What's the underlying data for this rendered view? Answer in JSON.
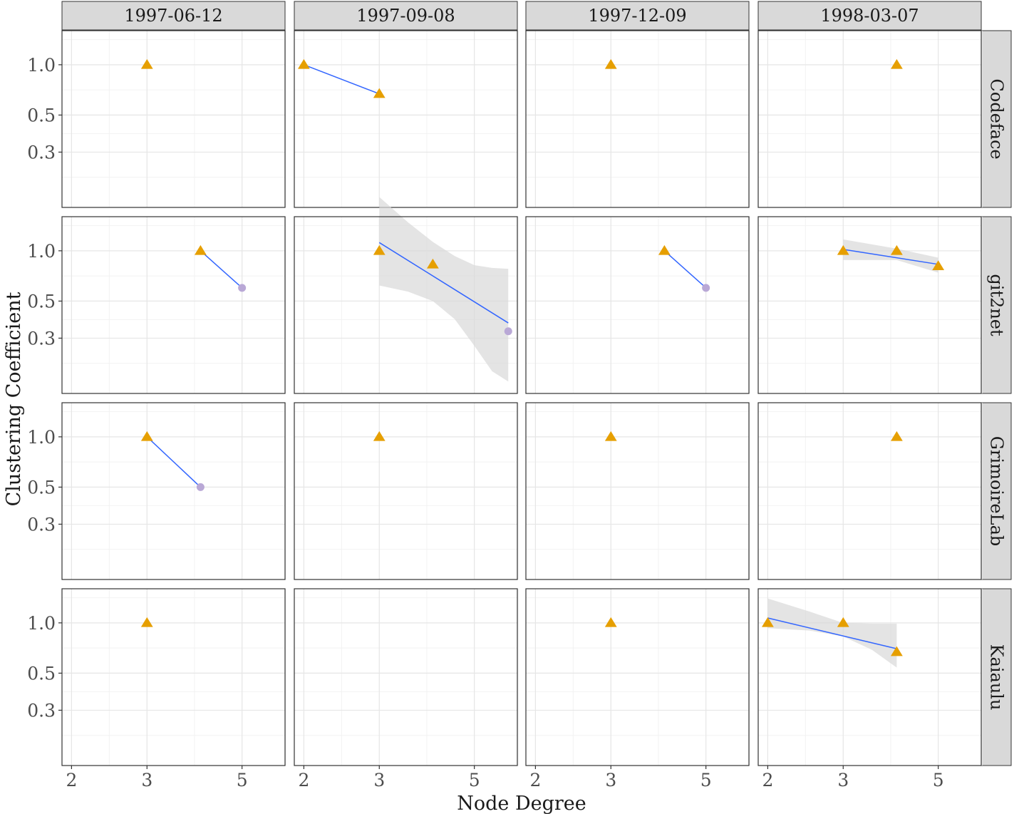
{
  "chart_data": {
    "type": "scatter",
    "title": "",
    "xlabel": "Node Degree",
    "ylabel": "Clustering Coefficient",
    "x_scale": "log",
    "y_scale": "log",
    "xlim": [
      1.9,
      6.3
    ],
    "ylim": [
      0.14,
      1.6
    ],
    "x_ticks": [
      2,
      3,
      5
    ],
    "x_tick_labels": [
      "2",
      "3",
      "5"
    ],
    "y_ticks": [
      0.3,
      0.5,
      1.0
    ],
    "y_tick_labels": [
      "0.3",
      "0.5",
      "1.0"
    ],
    "grid": true,
    "columns": [
      "1997-06-12",
      "1997-09-08",
      "1997-12-09",
      "1998-03-07"
    ],
    "rows": [
      "Codeface",
      "git2net",
      "GrimoireLab",
      "Kaiaulu"
    ],
    "colors": {
      "triangle": "#E69F00",
      "circle": "#B9A8D6",
      "fit_line": "#3366FF",
      "ribbon": "#D9D9D9",
      "strip": "#D9D9D9"
    },
    "panels": [
      {
        "row": "Codeface",
        "col": "1997-06-12",
        "points": [
          {
            "x": 3,
            "y": 1.0,
            "shape": "triangle"
          }
        ]
      },
      {
        "row": "Codeface",
        "col": "1997-09-08",
        "points": [
          {
            "x": 2,
            "y": 1.0,
            "shape": "triangle"
          },
          {
            "x": 3,
            "y": 0.67,
            "shape": "triangle"
          }
        ],
        "fit": [
          {
            "x": 2,
            "y": 1.0
          },
          {
            "x": 3,
            "y": 0.67
          }
        ]
      },
      {
        "row": "Codeface",
        "col": "1997-12-09",
        "points": [
          {
            "x": 3,
            "y": 1.0,
            "shape": "triangle"
          }
        ]
      },
      {
        "row": "Codeface",
        "col": "1998-03-07",
        "points": [
          {
            "x": 4,
            "y": 1.0,
            "shape": "triangle"
          }
        ]
      },
      {
        "row": "git2net",
        "col": "1997-06-12",
        "points": [
          {
            "x": 4,
            "y": 1.0,
            "shape": "triangle"
          },
          {
            "x": 5,
            "y": 0.6,
            "shape": "circle"
          }
        ],
        "fit": [
          {
            "x": 4,
            "y": 1.0
          },
          {
            "x": 5,
            "y": 0.6
          }
        ]
      },
      {
        "row": "git2net",
        "col": "1997-09-08",
        "points": [
          {
            "x": 3,
            "y": 1.0,
            "shape": "triangle"
          },
          {
            "x": 4,
            "y": 0.83,
            "shape": "triangle"
          },
          {
            "x": 6,
            "y": 0.33,
            "shape": "circle"
          }
        ],
        "fit": [
          {
            "x": 3,
            "y": 1.12
          },
          {
            "x": 6,
            "y": 0.37
          }
        ],
        "ribbon": [
          {
            "x": 3,
            "lo": 0.62,
            "hi": 2.1
          },
          {
            "x": 3.5,
            "lo": 0.57,
            "hi": 1.48
          },
          {
            "x": 4,
            "lo": 0.5,
            "hi": 1.13
          },
          {
            "x": 4.5,
            "lo": 0.39,
            "hi": 0.93
          },
          {
            "x": 5,
            "lo": 0.27,
            "hi": 0.82
          },
          {
            "x": 5.5,
            "lo": 0.19,
            "hi": 0.79
          },
          {
            "x": 6,
            "lo": 0.165,
            "hi": 0.78
          }
        ]
      },
      {
        "row": "git2net",
        "col": "1997-12-09",
        "points": [
          {
            "x": 4,
            "y": 1.0,
            "shape": "triangle"
          },
          {
            "x": 5,
            "y": 0.6,
            "shape": "circle"
          }
        ],
        "fit": [
          {
            "x": 4,
            "y": 1.0
          },
          {
            "x": 5,
            "y": 0.6
          }
        ]
      },
      {
        "row": "git2net",
        "col": "1998-03-07",
        "points": [
          {
            "x": 3,
            "y": 1.0,
            "shape": "triangle"
          },
          {
            "x": 4,
            "y": 1.0,
            "shape": "triangle"
          },
          {
            "x": 5,
            "y": 0.81,
            "shape": "triangle"
          }
        ],
        "fit": [
          {
            "x": 3,
            "y": 1.02
          },
          {
            "x": 5,
            "y": 0.83
          }
        ],
        "ribbon": [
          {
            "x": 3,
            "lo": 0.88,
            "hi": 1.17
          },
          {
            "x": 4,
            "lo": 0.88,
            "hi": 1.03
          },
          {
            "x": 5,
            "lo": 0.74,
            "hi": 0.91
          }
        ]
      },
      {
        "row": "GrimoireLab",
        "col": "1997-06-12",
        "points": [
          {
            "x": 3,
            "y": 1.0,
            "shape": "triangle"
          },
          {
            "x": 4,
            "y": 0.5,
            "shape": "circle"
          }
        ],
        "fit": [
          {
            "x": 3,
            "y": 1.0
          },
          {
            "x": 4,
            "y": 0.5
          }
        ]
      },
      {
        "row": "GrimoireLab",
        "col": "1997-09-08",
        "points": [
          {
            "x": 3,
            "y": 1.0,
            "shape": "triangle"
          }
        ]
      },
      {
        "row": "GrimoireLab",
        "col": "1997-12-09",
        "points": [
          {
            "x": 3,
            "y": 1.0,
            "shape": "triangle"
          }
        ]
      },
      {
        "row": "GrimoireLab",
        "col": "1998-03-07",
        "points": [
          {
            "x": 4,
            "y": 1.0,
            "shape": "triangle"
          }
        ]
      },
      {
        "row": "Kaiaulu",
        "col": "1997-06-12",
        "points": [
          {
            "x": 3,
            "y": 1.0,
            "shape": "triangle"
          }
        ]
      },
      {
        "row": "Kaiaulu",
        "col": "1997-09-08",
        "points": []
      },
      {
        "row": "Kaiaulu",
        "col": "1997-12-09",
        "points": [
          {
            "x": 3,
            "y": 1.0,
            "shape": "triangle"
          }
        ]
      },
      {
        "row": "Kaiaulu",
        "col": "1998-03-07",
        "points": [
          {
            "x": 2,
            "y": 1.0,
            "shape": "triangle"
          },
          {
            "x": 3,
            "y": 1.0,
            "shape": "triangle"
          },
          {
            "x": 4,
            "y": 0.67,
            "shape": "triangle"
          }
        ],
        "fit": [
          {
            "x": 2,
            "y": 1.07
          },
          {
            "x": 4,
            "y": 0.7
          }
        ],
        "ribbon": [
          {
            "x": 2,
            "lo": 0.93,
            "hi": 1.4
          },
          {
            "x": 2.5,
            "lo": 0.9,
            "hi": 1.17
          },
          {
            "x": 3,
            "lo": 0.83,
            "hi": 1.0
          },
          {
            "x": 3.5,
            "lo": 0.69,
            "hi": 0.99
          },
          {
            "x": 4,
            "lo": 0.54,
            "hi": 0.99
          }
        ]
      }
    ]
  }
}
